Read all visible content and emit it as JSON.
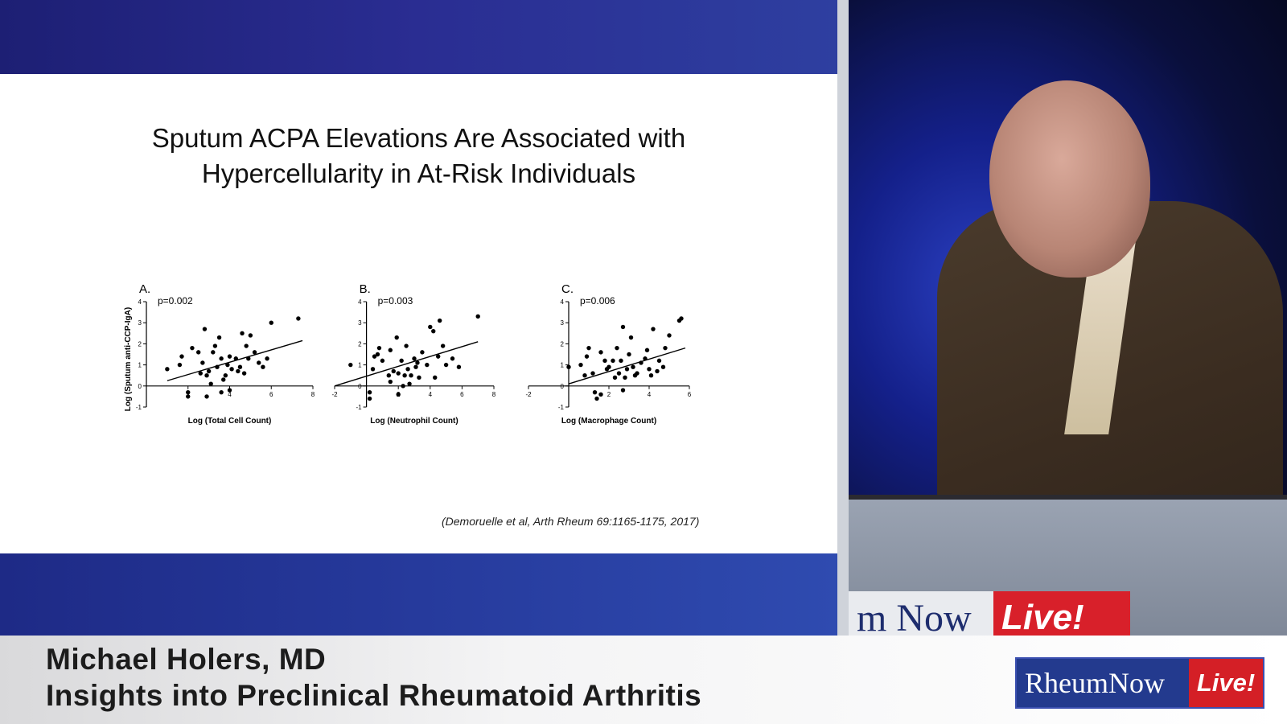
{
  "slide": {
    "title_line1": "Sputum ACPA Elevations Are Associated with",
    "title_line2": "Hypercellularity in At-Risk Individuals",
    "citation": "(Demoruelle et al, Arth Rheum 69:1165-1175, 2017)"
  },
  "lower_third": {
    "speaker_name": "Michael Holers, MD",
    "talk_title": "Insights into Preclinical Rheumatoid Arthritis",
    "logo_text": "RheumNow",
    "logo_live": "Live!"
  },
  "podium_sign": {
    "text": "m Now",
    "live": "Live!"
  },
  "colors": {
    "slide_band": "#2a2d92",
    "logo_blue": "#233a8e",
    "logo_red": "#d41f26"
  },
  "chart_data": [
    {
      "type": "scatter",
      "panel": "A.",
      "annotation": "p=0.002",
      "xlabel": "Log (Total Cell Count)",
      "ylabel": "Log (Sputum anti-CCP-IgA)",
      "xlim": [
        0,
        8
      ],
      "ylim": [
        -1,
        4
      ],
      "xticks": [
        2,
        4,
        6,
        8
      ],
      "yticks": [
        -1,
        0,
        1,
        2,
        3,
        4
      ],
      "trendline": [
        [
          1.0,
          0.25
        ],
        [
          7.5,
          2.15
        ]
      ],
      "points": [
        [
          1.0,
          0.8
        ],
        [
          1.6,
          1.0
        ],
        [
          1.7,
          1.4
        ],
        [
          2.0,
          -0.3
        ],
        [
          2.0,
          -0.5
        ],
        [
          2.2,
          1.8
        ],
        [
          2.5,
          1.6
        ],
        [
          2.6,
          0.6
        ],
        [
          2.7,
          1.1
        ],
        [
          2.8,
          2.7
        ],
        [
          2.9,
          0.5
        ],
        [
          3.0,
          0.7
        ],
        [
          3.1,
          0.1
        ],
        [
          3.2,
          1.6
        ],
        [
          3.3,
          1.9
        ],
        [
          3.4,
          0.9
        ],
        [
          3.5,
          2.3
        ],
        [
          3.6,
          1.3
        ],
        [
          3.7,
          0.3
        ],
        [
          3.8,
          0.5
        ],
        [
          3.9,
          1.0
        ],
        [
          4.0,
          1.4
        ],
        [
          4.1,
          0.8
        ],
        [
          4.3,
          1.3
        ],
        [
          4.4,
          0.7
        ],
        [
          4.5,
          0.9
        ],
        [
          4.6,
          2.5
        ],
        [
          4.7,
          0.6
        ],
        [
          4.8,
          1.9
        ],
        [
          4.9,
          1.3
        ],
        [
          5.0,
          2.4
        ],
        [
          5.2,
          1.6
        ],
        [
          5.4,
          1.1
        ],
        [
          5.6,
          0.9
        ],
        [
          5.8,
          1.3
        ],
        [
          6.0,
          3.0
        ],
        [
          7.3,
          3.2
        ],
        [
          3.6,
          -0.3
        ],
        [
          4.0,
          -0.2
        ],
        [
          2.9,
          -0.5
        ]
      ]
    },
    {
      "type": "scatter",
      "panel": "B.",
      "annotation": "p=0.003",
      "xlabel": "Log (Neutrophil Count)",
      "ylabel": "",
      "xlim": [
        -2,
        8
      ],
      "ylim": [
        -1,
        4
      ],
      "xticks": [
        -2,
        2,
        4,
        6,
        8
      ],
      "yticks": [
        -1,
        0,
        1,
        2,
        3,
        4
      ],
      "trendline": [
        [
          -2.0,
          0.0
        ],
        [
          7.0,
          2.1
        ]
      ],
      "points": [
        [
          -1.0,
          1.0
        ],
        [
          0.2,
          -0.3
        ],
        [
          0.2,
          -0.6
        ],
        [
          0.4,
          0.8
        ],
        [
          0.5,
          1.4
        ],
        [
          0.7,
          1.5
        ],
        [
          0.8,
          1.8
        ],
        [
          1.0,
          1.2
        ],
        [
          1.4,
          0.5
        ],
        [
          1.5,
          1.7
        ],
        [
          1.7,
          0.7
        ],
        [
          1.9,
          2.3
        ],
        [
          2.0,
          0.6
        ],
        [
          2.0,
          -0.4
        ],
        [
          2.2,
          1.2
        ],
        [
          2.4,
          0.5
        ],
        [
          2.5,
          1.9
        ],
        [
          2.6,
          0.8
        ],
        [
          2.7,
          0.1
        ],
        [
          2.8,
          0.5
        ],
        [
          3.0,
          1.3
        ],
        [
          3.1,
          0.9
        ],
        [
          3.2,
          1.1
        ],
        [
          3.3,
          0.4
        ],
        [
          3.5,
          1.6
        ],
        [
          3.8,
          1.0
        ],
        [
          4.0,
          2.8
        ],
        [
          4.2,
          2.6
        ],
        [
          4.3,
          0.4
        ],
        [
          4.5,
          1.4
        ],
        [
          4.6,
          3.1
        ],
        [
          4.8,
          1.9
        ],
        [
          5.0,
          1.0
        ],
        [
          5.4,
          1.3
        ],
        [
          5.8,
          0.9
        ],
        [
          7.0,
          3.3
        ],
        [
          1.5,
          0.2
        ],
        [
          2.3,
          0.0
        ]
      ]
    },
    {
      "type": "scatter",
      "panel": "C.",
      "annotation": "p=0.006",
      "xlabel": "Log (Macrophage Count)",
      "ylabel": "",
      "xlim": [
        -2,
        6
      ],
      "ylim": [
        -1,
        4
      ],
      "xticks": [
        -2,
        2,
        4,
        6
      ],
      "yticks": [
        -1,
        0,
        1,
        2,
        3,
        4
      ],
      "trendline": [
        [
          0.0,
          0.1
        ],
        [
          5.8,
          1.8
        ]
      ],
      "points": [
        [
          0.0,
          0.9
        ],
        [
          0.6,
          1.0
        ],
        [
          0.8,
          0.5
        ],
        [
          0.9,
          1.4
        ],
        [
          1.0,
          1.8
        ],
        [
          1.2,
          0.6
        ],
        [
          1.3,
          -0.3
        ],
        [
          1.4,
          -0.6
        ],
        [
          1.6,
          1.6
        ],
        [
          1.8,
          1.2
        ],
        [
          1.9,
          0.8
        ],
        [
          2.0,
          0.9
        ],
        [
          2.2,
          1.2
        ],
        [
          2.3,
          0.4
        ],
        [
          2.4,
          1.8
        ],
        [
          2.5,
          0.6
        ],
        [
          2.6,
          1.2
        ],
        [
          2.7,
          2.8
        ],
        [
          2.8,
          0.4
        ],
        [
          2.9,
          0.8
        ],
        [
          3.0,
          1.5
        ],
        [
          3.1,
          2.3
        ],
        [
          3.2,
          0.9
        ],
        [
          3.3,
          0.5
        ],
        [
          3.4,
          0.6
        ],
        [
          3.6,
          1.1
        ],
        [
          3.8,
          1.3
        ],
        [
          3.9,
          1.7
        ],
        [
          4.0,
          0.8
        ],
        [
          4.1,
          0.5
        ],
        [
          4.2,
          2.7
        ],
        [
          4.4,
          0.7
        ],
        [
          4.5,
          1.2
        ],
        [
          4.7,
          0.9
        ],
        [
          4.8,
          1.8
        ],
        [
          5.0,
          2.4
        ],
        [
          5.5,
          3.1
        ],
        [
          5.6,
          3.2
        ],
        [
          1.6,
          -0.4
        ],
        [
          2.7,
          -0.2
        ]
      ]
    }
  ]
}
